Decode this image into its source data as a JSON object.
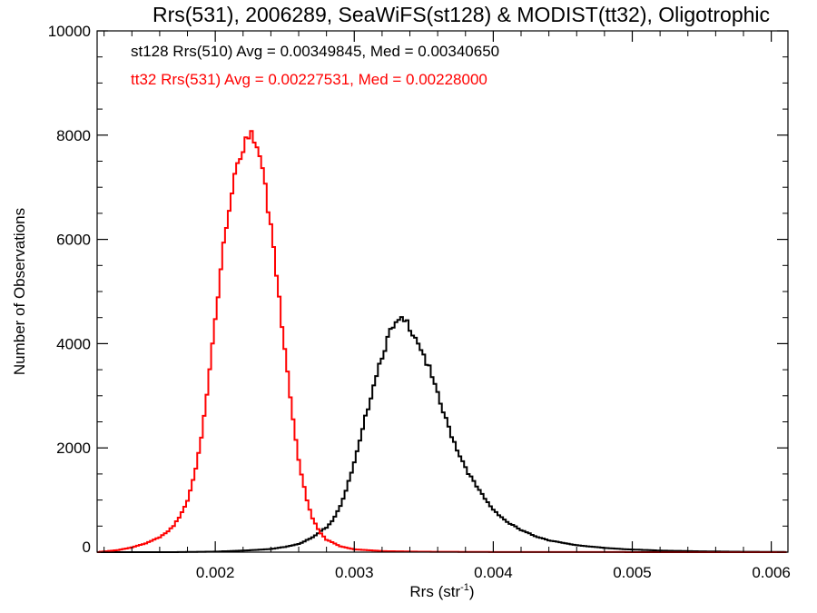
{
  "chart_data": {
    "type": "line",
    "title": "Rrs(531), 2006289, SeaWiFS(st128) & MODIST(tt32), Oligotrophic",
    "xlabel": "Rrs (str",
    "xlabel_superscript": "-1",
    "xlabel_suffix": ")",
    "ylabel": "Number of Observations",
    "xlim": [
      0.00115,
      0.00612
    ],
    "ylim": [
      0,
      10000
    ],
    "x_ticks": [
      0.002,
      0.003,
      0.004,
      0.005,
      0.006
    ],
    "x_tick_labels": [
      "0.002",
      "0.003",
      "0.004",
      "0.005",
      "0.006"
    ],
    "y_ticks": [
      0,
      2000,
      4000,
      6000,
      8000,
      10000
    ],
    "y_tick_labels": [
      "0",
      "2000",
      "4000",
      "6000",
      "8000",
      "10000"
    ],
    "grid": false,
    "legend_placement": "top-left",
    "series": [
      {
        "name": "st128 Rrs(510) Avg = 0.00349845, Med = 0.00340650",
        "color": "#000000",
        "points": [
          [
            0.0017,
            0
          ],
          [
            0.002,
            10
          ],
          [
            0.0022,
            30
          ],
          [
            0.0024,
            60
          ],
          [
            0.0025,
            100
          ],
          [
            0.0026,
            160
          ],
          [
            0.0027,
            280
          ],
          [
            0.0028,
            480
          ],
          [
            0.00285,
            640
          ],
          [
            0.0029,
            900
          ],
          [
            0.00295,
            1250
          ],
          [
            0.003,
            1700
          ],
          [
            0.00305,
            2200
          ],
          [
            0.0031,
            2800
          ],
          [
            0.00315,
            3350
          ],
          [
            0.0032,
            3800
          ],
          [
            0.00325,
            4150
          ],
          [
            0.0033,
            4350
          ],
          [
            0.00335,
            4420
          ],
          [
            0.0034,
            4350
          ],
          [
            0.00345,
            4120
          ],
          [
            0.0035,
            3800
          ],
          [
            0.00355,
            3420
          ],
          [
            0.0036,
            3000
          ],
          [
            0.00365,
            2600
          ],
          [
            0.0037,
            2250
          ],
          [
            0.00375,
            1920
          ],
          [
            0.0038,
            1640
          ],
          [
            0.00385,
            1380
          ],
          [
            0.0039,
            1170
          ],
          [
            0.00395,
            980
          ],
          [
            0.004,
            820
          ],
          [
            0.0041,
            580
          ],
          [
            0.0042,
            420
          ],
          [
            0.0043,
            310
          ],
          [
            0.0044,
            230
          ],
          [
            0.0045,
            175
          ],
          [
            0.0046,
            135
          ],
          [
            0.0048,
            80
          ],
          [
            0.005,
            50
          ],
          [
            0.0052,
            30
          ],
          [
            0.0055,
            15
          ],
          [
            0.0058,
            7
          ],
          [
            0.0061,
            3
          ]
        ]
      },
      {
        "name": "tt32 Rrs(531) Avg = 0.00227531, Med = 0.00228000",
        "color": "#ff0000",
        "points": [
          [
            0.00115,
            0
          ],
          [
            0.0013,
            40
          ],
          [
            0.0014,
            90
          ],
          [
            0.0015,
            170
          ],
          [
            0.0016,
            290
          ],
          [
            0.00165,
            370
          ],
          [
            0.0017,
            500
          ],
          [
            0.00175,
            700
          ],
          [
            0.0018,
            1000
          ],
          [
            0.00185,
            1500
          ],
          [
            0.0019,
            2200
          ],
          [
            0.00195,
            3200
          ],
          [
            0.002,
            4400
          ],
          [
            0.00205,
            5600
          ],
          [
            0.0021,
            6700
          ],
          [
            0.00215,
            7400
          ],
          [
            0.0022,
            7800
          ],
          [
            0.00225,
            7950
          ],
          [
            0.0023,
            7700
          ],
          [
            0.00235,
            7150
          ],
          [
            0.0024,
            6300
          ],
          [
            0.00245,
            5200
          ],
          [
            0.0025,
            3900
          ],
          [
            0.00255,
            2700
          ],
          [
            0.0026,
            1750
          ],
          [
            0.00265,
            1100
          ],
          [
            0.0027,
            650
          ],
          [
            0.00275,
            400
          ],
          [
            0.0028,
            240
          ],
          [
            0.0029,
            110
          ],
          [
            0.003,
            55
          ],
          [
            0.0032,
            20
          ],
          [
            0.0035,
            8
          ],
          [
            0.004,
            3
          ],
          [
            0.005,
            1
          ],
          [
            0.0061,
            0
          ]
        ]
      }
    ]
  }
}
